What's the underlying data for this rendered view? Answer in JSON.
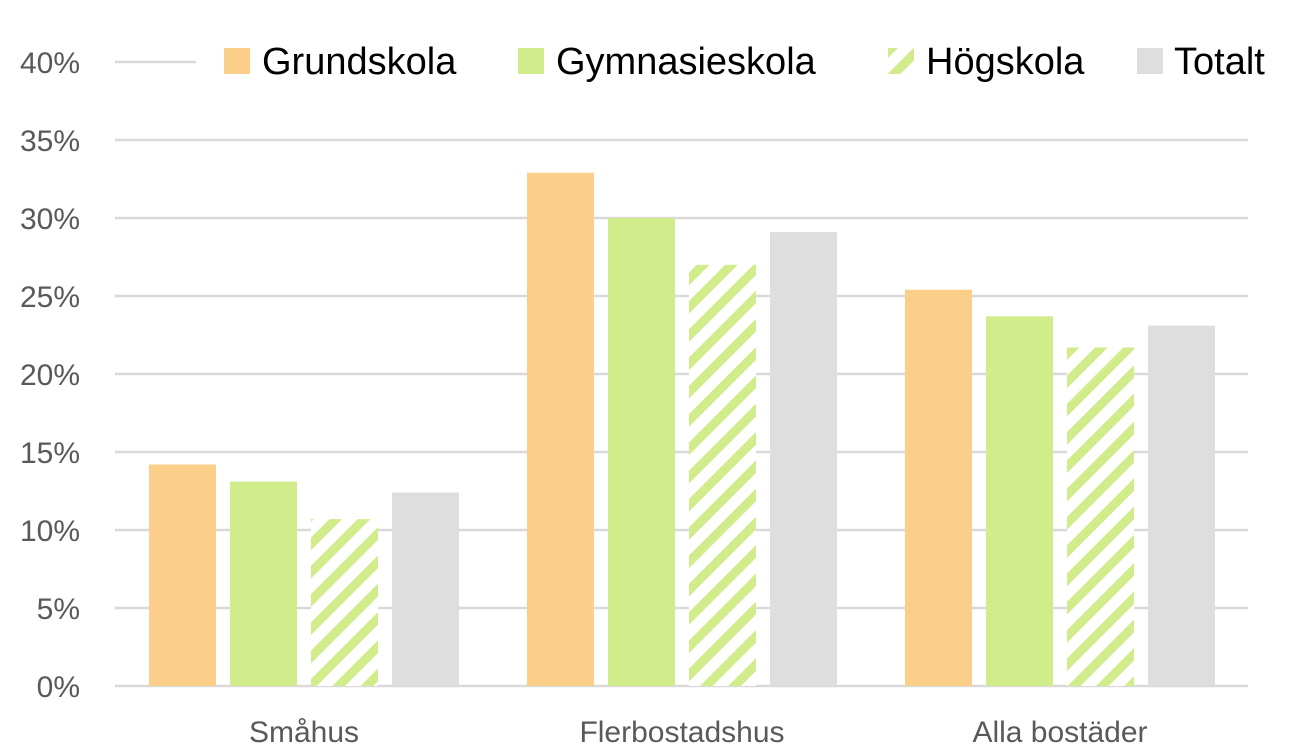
{
  "chart_data": {
    "type": "bar",
    "title": "",
    "xlabel": "",
    "ylabel": "",
    "categories": [
      "Småhus",
      "Flerbostadshus",
      "Alla bostäder"
    ],
    "series": [
      {
        "name": "Grundskola",
        "values": [
          14.2,
          32.9,
          25.4
        ],
        "color": "#FBCF8A",
        "pattern": "solid"
      },
      {
        "name": "Gymnasieskola",
        "values": [
          13.1,
          30.0,
          23.7
        ],
        "color": "#D1EC8A",
        "pattern": "solid"
      },
      {
        "name": "Högskola",
        "values": [
          10.7,
          27.0,
          21.7
        ],
        "color": "#D1EC8A",
        "pattern": "diagonal-stripes"
      },
      {
        "name": "Totalt",
        "values": [
          12.4,
          29.1,
          23.1
        ],
        "color": "#DEDEDE",
        "pattern": "solid"
      }
    ],
    "ylim": [
      0,
      40
    ],
    "yticks": [
      "0%",
      "5%",
      "10%",
      "15%",
      "20%",
      "25%",
      "30%",
      "35%",
      "40%"
    ],
    "grid": true,
    "legend_position": "top"
  }
}
